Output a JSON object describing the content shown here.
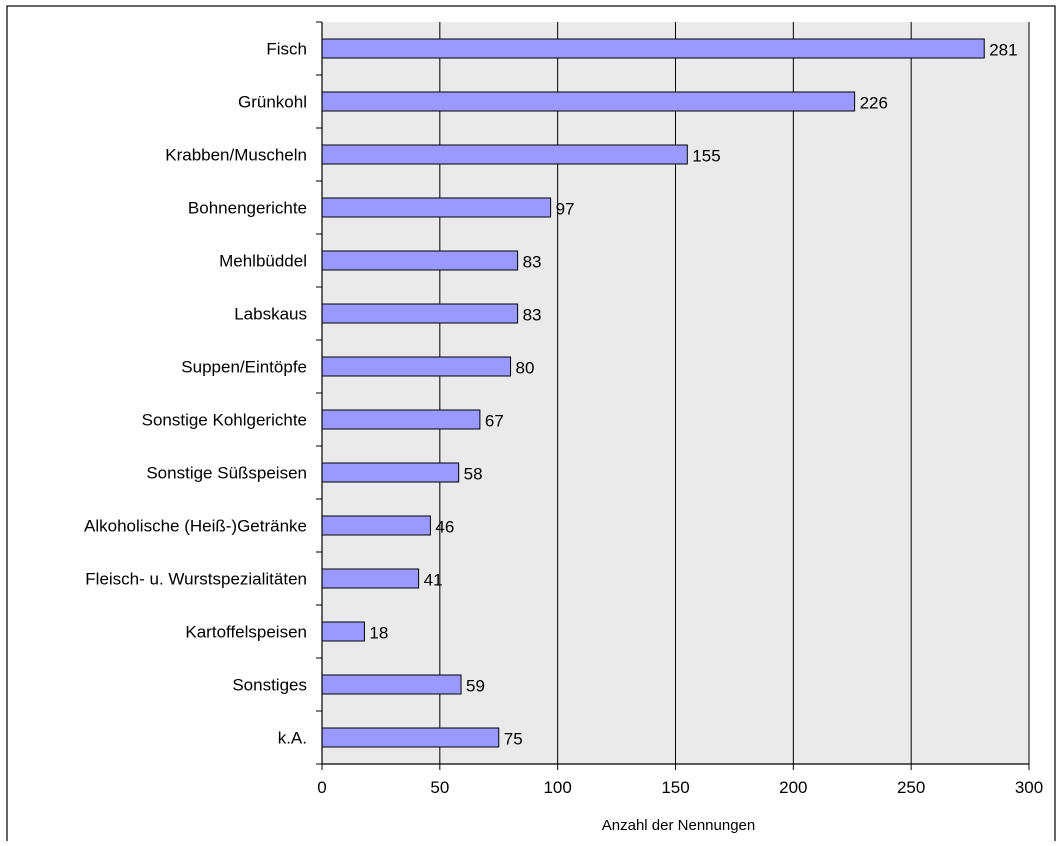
{
  "chart_data": {
    "type": "bar",
    "orientation": "horizontal",
    "categories": [
      "Fisch",
      "Grünkohl",
      "Krabben/Muscheln",
      "Bohnengerichte",
      "Mehlbüddel",
      "Labskaus",
      "Suppen/Eintöpfe",
      "Sonstige Kohlgerichte",
      "Sonstige Süßspeisen",
      "Alkoholische (Heiß-)Getränke",
      "Fleisch- u. Wurstspezialitäten",
      "Kartoffelspeisen",
      "Sonstiges",
      "k.A."
    ],
    "values": [
      281,
      226,
      155,
      97,
      83,
      83,
      80,
      67,
      58,
      46,
      41,
      18,
      59,
      75
    ],
    "value_labels": [
      "281",
      "226",
      "155",
      "97",
      "83",
      "83",
      "80",
      "67",
      "58",
      "46",
      "41",
      "18",
      "59",
      "75"
    ],
    "xlabel": "Anzahl der Nennungen",
    "xlim": [
      0,
      300
    ],
    "xticks": [
      0,
      50,
      100,
      150,
      200,
      250,
      300
    ],
    "xtick_labels": [
      "0",
      "50",
      "100",
      "150",
      "200",
      "250",
      "300"
    ],
    "grid": "vertical",
    "legend": "none",
    "colors": {
      "bar_fill": "#9999ff",
      "bar_stroke": "#000000",
      "plot_background": "#eaeaea",
      "grid": "#000000"
    }
  }
}
